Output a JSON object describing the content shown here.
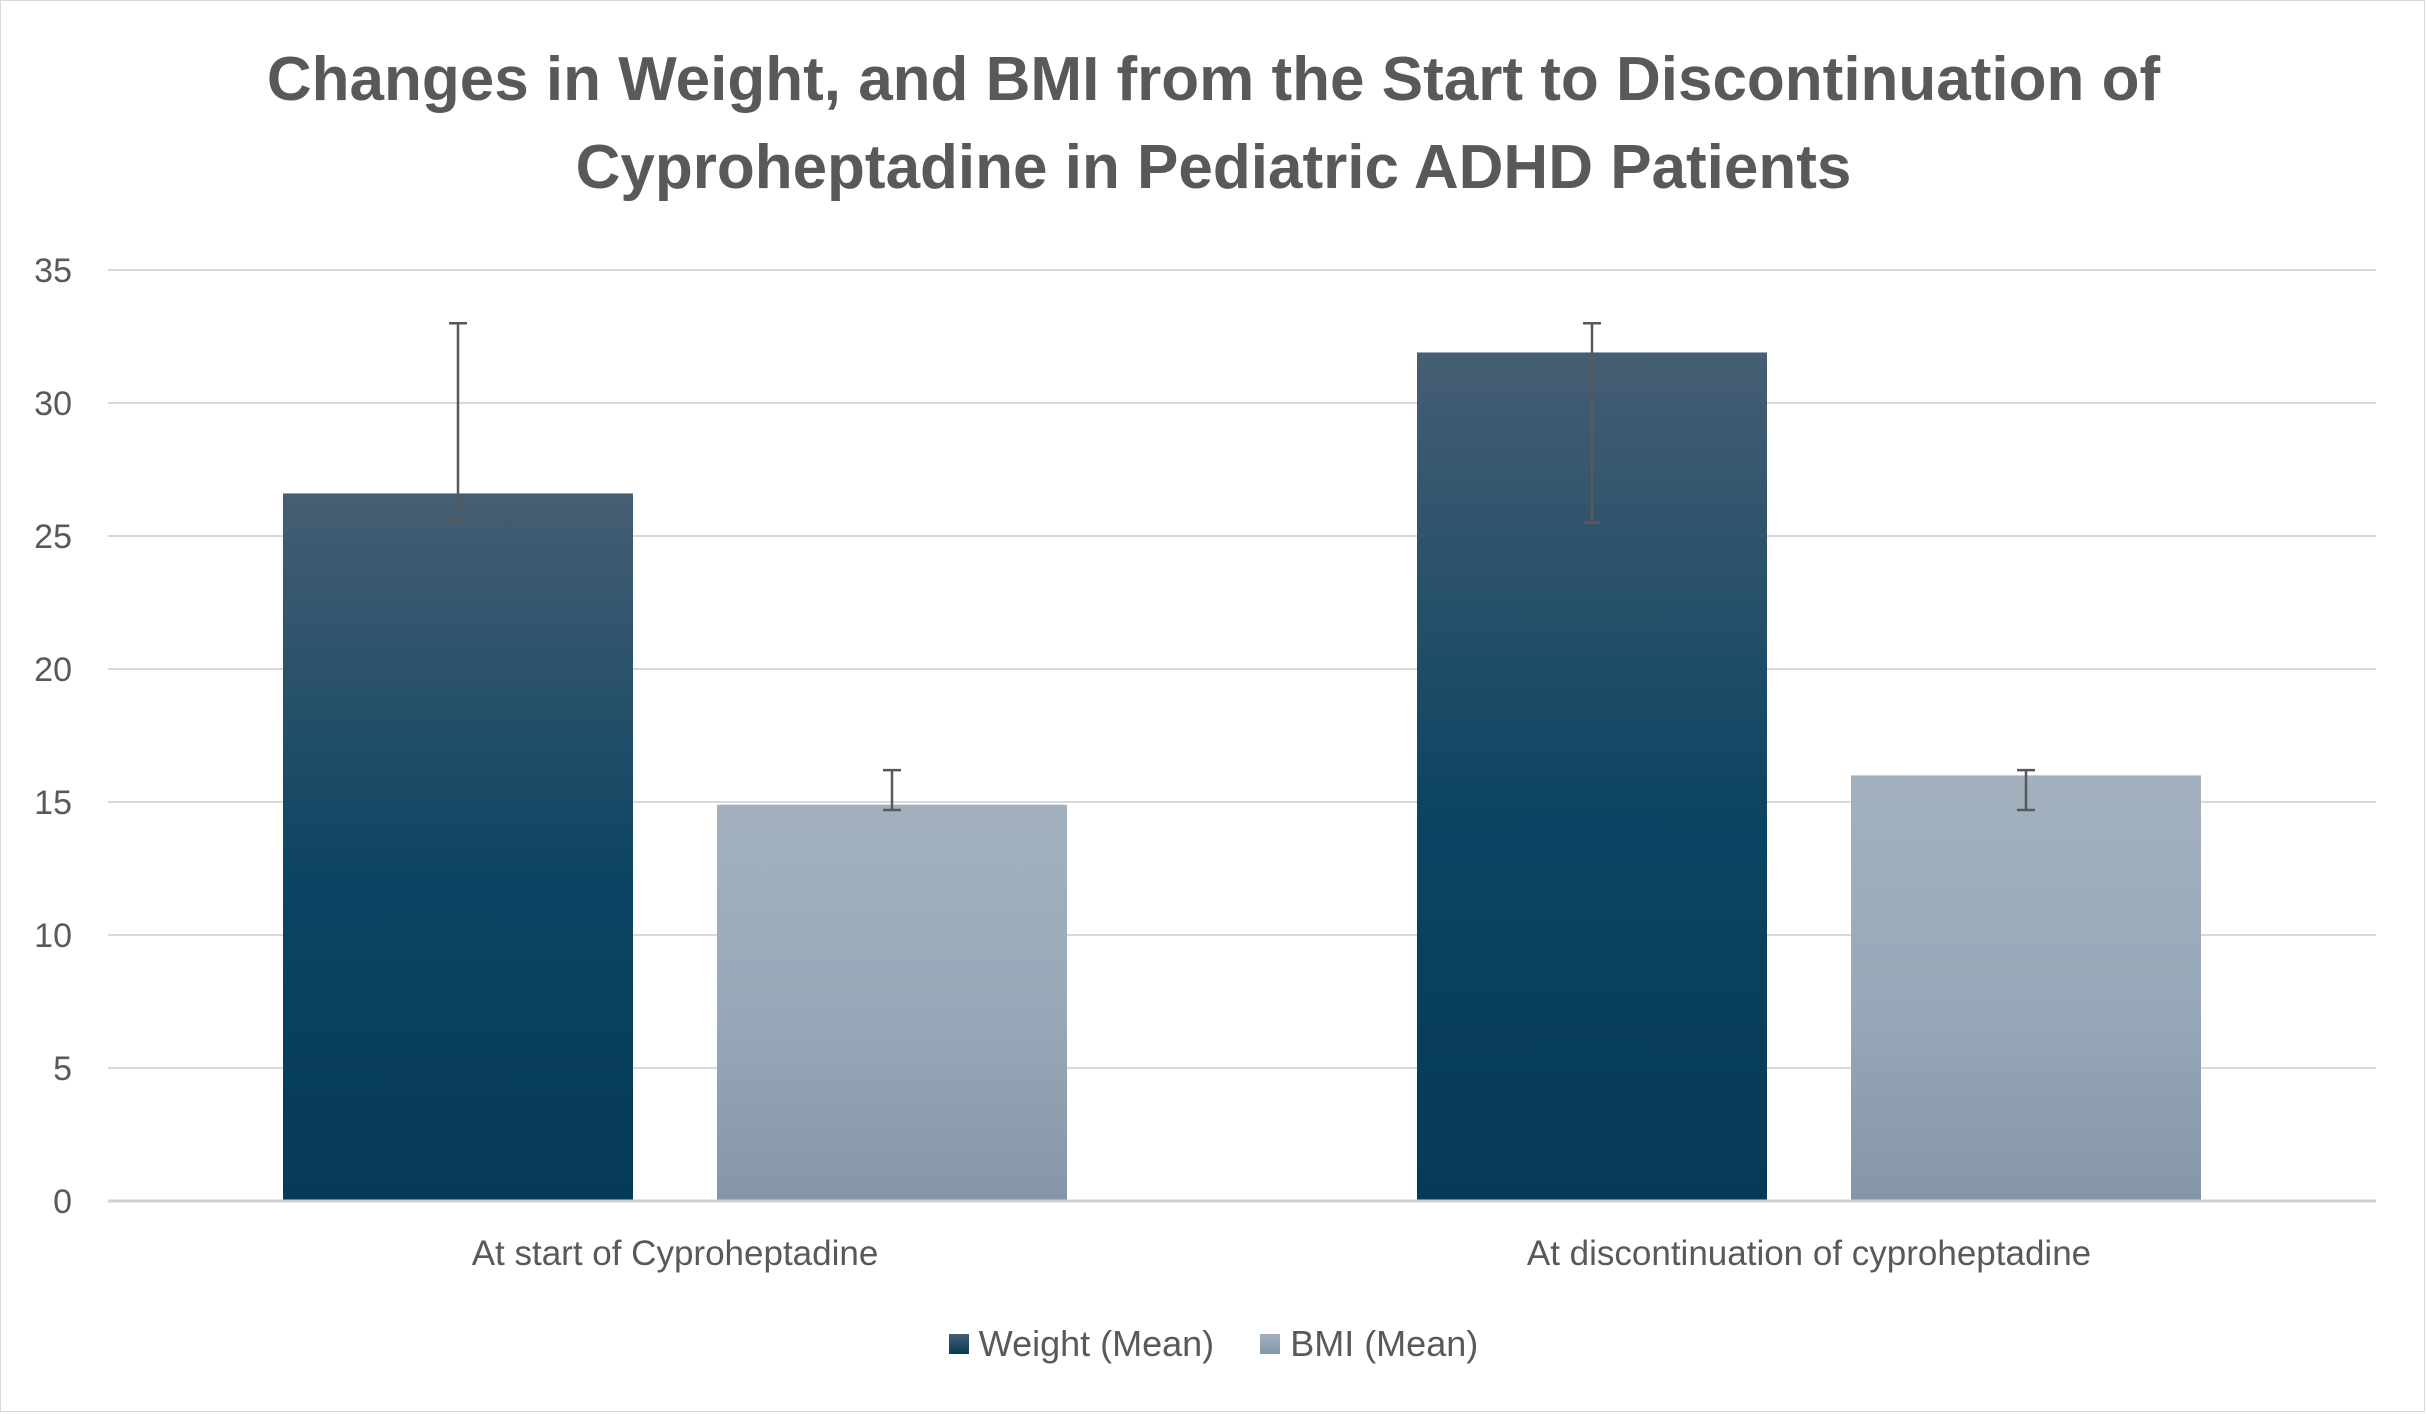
{
  "chart_data": {
    "type": "bar",
    "title": "Changes in Weight, and BMI from the Start to Discontinuation of Cyproheptadine in Pediatric ADHD Patients",
    "title_lines": [
      "Changes in Weight, and BMI from the Start to Discontinuation of",
      "Cyproheptadine in Pediatric ADHD Patients"
    ],
    "xlabel": "",
    "ylabel": "",
    "categories": [
      "At start of Cyproheptadine",
      "At discontinuation of cyproheptadine"
    ],
    "series": [
      {
        "name": "Weight (Mean)",
        "values": [
          26.6,
          31.9
        ],
        "error_low": [
          25.6,
          25.5
        ],
        "error_high": [
          33.0,
          33.0
        ],
        "color_top": "#465e73",
        "color_mid": "#0b4462",
        "color_bottom": "#053a58"
      },
      {
        "name": "BMI (Mean)",
        "values": [
          14.9,
          16.0
        ],
        "error_low": [
          14.7,
          14.7
        ],
        "error_high": [
          16.2,
          16.2
        ],
        "color_top": "#a3b1bf",
        "color_mid": "#97a8b8",
        "color_bottom": "#8496a7"
      }
    ],
    "ylim": [
      0,
      35
    ],
    "yticks": [
      "0",
      "5",
      "10",
      "15",
      "20",
      "25",
      "30",
      "35"
    ],
    "grid": true,
    "legend_position": "bottom",
    "colors": {
      "grid": "#d9d9d9",
      "axis": "#d0d0d0",
      "text": "#595959",
      "error_bar": "#595959"
    }
  }
}
